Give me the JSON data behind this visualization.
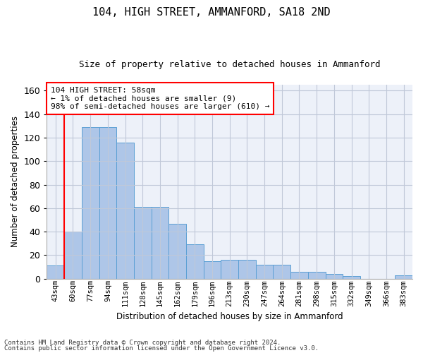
{
  "title1": "104, HIGH STREET, AMMANFORD, SA18 2ND",
  "title2": "Size of property relative to detached houses in Ammanford",
  "xlabel": "Distribution of detached houses by size in Ammanford",
  "ylabel": "Number of detached properties",
  "categories": [
    "43sqm",
    "60sqm",
    "77sqm",
    "94sqm",
    "111sqm",
    "128sqm",
    "145sqm",
    "162sqm",
    "179sqm",
    "196sqm",
    "213sqm",
    "230sqm",
    "247sqm",
    "264sqm",
    "281sqm",
    "298sqm",
    "315sqm",
    "332sqm",
    "349sqm",
    "366sqm",
    "383sqm"
  ],
  "values": [
    11,
    40,
    129,
    129,
    116,
    61,
    61,
    47,
    29,
    15,
    16,
    16,
    12,
    12,
    6,
    6,
    4,
    2,
    0,
    0,
    3
  ],
  "bar_color": "#aec6e8",
  "bar_edge_color": "#5a9fd4",
  "annotation_text": "104 HIGH STREET: 58sqm\n← 1% of detached houses are smaller (9)\n98% of semi-detached houses are larger (610) →",
  "annotation_box_color": "white",
  "annotation_box_edge": "red",
  "vline_color": "red",
  "ylim": [
    0,
    165
  ],
  "yticks": [
    0,
    20,
    40,
    60,
    80,
    100,
    120,
    140,
    160
  ],
  "footnote1": "Contains HM Land Registry data © Crown copyright and database right 2024.",
  "footnote2": "Contains public sector information licensed under the Open Government Licence v3.0.",
  "background_color": "#edf1f9",
  "grid_color": "#c0c8d8"
}
